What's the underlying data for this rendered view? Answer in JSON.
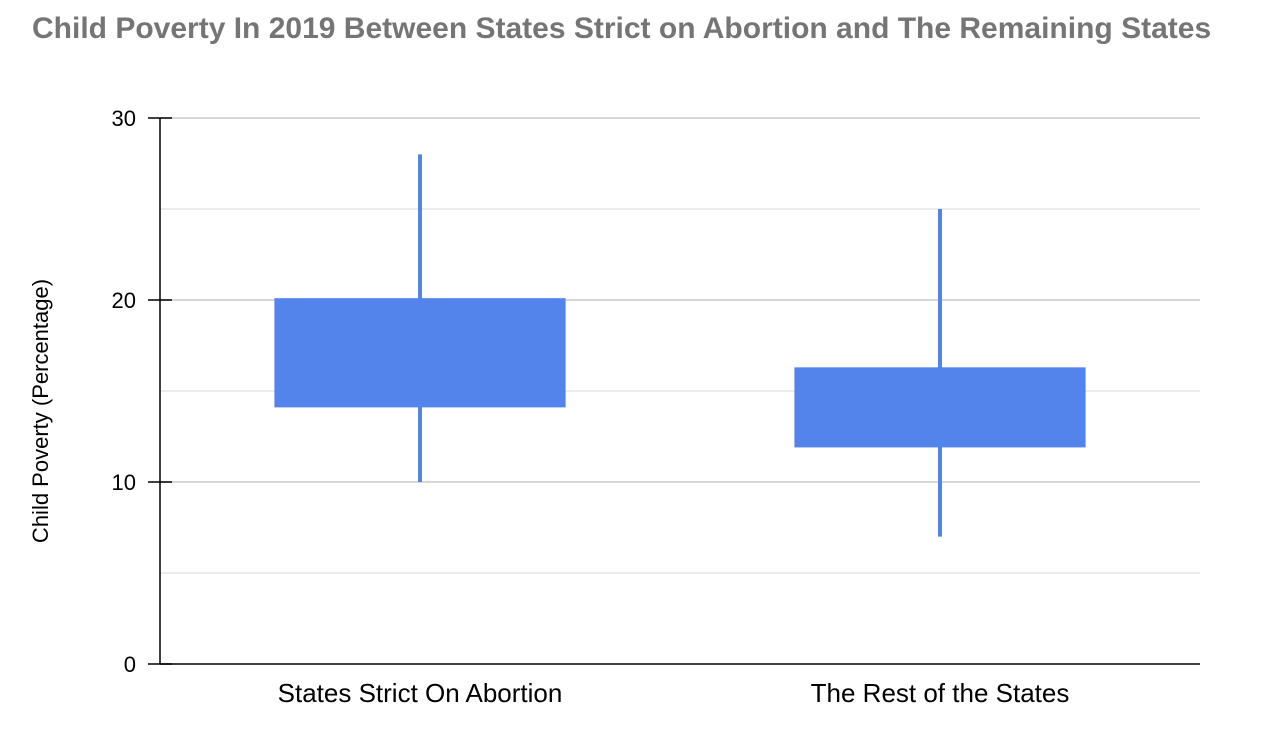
{
  "chart_data": {
    "type": "box",
    "title": "Child Poverty In 2019 Between States Strict on Abortion and The Remaining States",
    "xlabel": "",
    "ylabel": "Child Poverty (Percentage)",
    "ylim": [
      0,
      30
    ],
    "yticks": [
      0,
      10,
      20,
      30
    ],
    "grid": true,
    "color": "#5284EB",
    "categories": [
      "States Strict On Abortion",
      "The Rest of the States"
    ],
    "series": [
      {
        "values": [
          {
            "low": 10,
            "q1": 14.1,
            "q3": 20.1,
            "high": 28
          },
          {
            "low": 7,
            "q1": 11.9,
            "q3": 16.3,
            "high": 25
          }
        ]
      }
    ]
  }
}
